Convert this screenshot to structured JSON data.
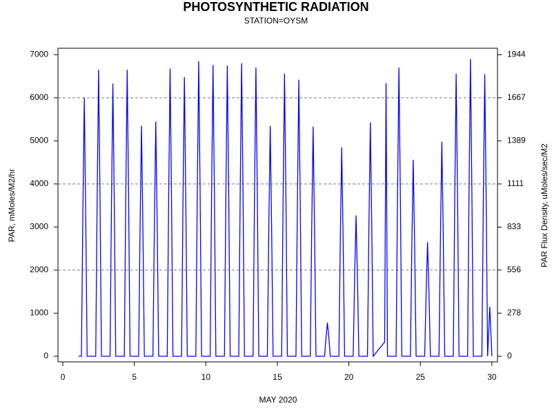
{
  "chart_data": {
    "type": "line",
    "title": "PHOTOSYNTHETIC RADIATION",
    "subtitle": "STATION=OYSM",
    "x_label": "MAY 2020",
    "y_label": "PAR, mMoles/M2/hr",
    "y2_label": "PAR Flux Density, uMoles/sec/M2",
    "xlim": [
      -0.34,
      30.39
    ],
    "xticks": [
      0,
      5,
      10,
      15,
      20,
      25,
      30
    ],
    "ylim": [
      -130,
      7150
    ],
    "yticks": [
      0,
      1000,
      2000,
      3000,
      4000,
      5000,
      6000,
      7000
    ],
    "y2lim": [
      -36.1,
      1986.1
    ],
    "y2ticks": [
      0,
      278,
      556,
      833,
      1111,
      1389,
      1667,
      1944
    ],
    "grid_lines": [
      2000,
      4000,
      6000
    ],
    "series": [
      {
        "color": "#0000ff",
        "x": [
          1.1,
          1.3,
          1.4,
          1.5,
          1.6,
          1.7,
          2.3,
          2.4,
          2.5,
          2.6,
          2.7,
          3.3,
          3.4,
          3.5,
          3.6,
          3.7,
          4.3,
          4.4,
          4.5,
          4.6,
          4.7,
          5.3,
          5.4,
          5.5,
          5.6,
          5.7,
          6.3,
          6.4,
          6.5,
          6.6,
          6.7,
          7.3,
          7.4,
          7.5,
          7.6,
          7.7,
          8.3,
          8.4,
          8.5,
          8.6,
          8.7,
          9.3,
          9.4,
          9.5,
          9.6,
          9.7,
          10.3,
          10.4,
          10.5,
          10.6,
          10.7,
          11.3,
          11.4,
          11.5,
          11.6,
          11.7,
          12.3,
          12.4,
          12.5,
          12.6,
          12.7,
          13.3,
          13.4,
          13.5,
          13.6,
          13.7,
          14.3,
          14.4,
          14.5,
          14.6,
          14.7,
          15.3,
          15.4,
          15.5,
          15.6,
          15.7,
          16.3,
          16.4,
          16.5,
          16.6,
          16.7,
          17.3,
          17.4,
          17.5,
          17.6,
          17.7,
          18.3,
          18.4,
          18.5,
          18.6,
          18.7,
          19.3,
          19.4,
          19.5,
          19.6,
          19.7,
          20.3,
          20.4,
          20.5,
          20.6,
          20.7,
          21.3,
          21.4,
          21.5,
          21.6,
          21.7,
          22.5,
          22.6,
          22.7,
          23.3,
          23.4,
          23.5,
          23.6,
          23.7,
          24.3,
          24.4,
          24.5,
          24.6,
          24.7,
          25.3,
          25.4,
          25.5,
          25.6,
          25.7,
          26.3,
          26.4,
          26.5,
          26.6,
          26.7,
          27.3,
          27.4,
          27.5,
          27.6,
          27.7,
          28.3,
          28.4,
          28.5,
          28.6,
          28.7,
          29.3,
          29.4,
          29.5,
          29.6,
          29.7,
          29.85,
          30.0
        ],
        "values": [
          0,
          0,
          3300,
          6000,
          3300,
          0,
          0,
          3660,
          6650,
          3660,
          0,
          0,
          3480,
          6330,
          3480,
          0,
          0,
          3660,
          6650,
          3660,
          0,
          0,
          2940,
          5350,
          2940,
          0,
          0,
          3000,
          5450,
          3000,
          0,
          0,
          3670,
          6680,
          3670,
          0,
          0,
          3560,
          6480,
          3560,
          0,
          0,
          3770,
          6850,
          3770,
          0,
          0,
          3720,
          6760,
          3720,
          0,
          0,
          3710,
          6750,
          3710,
          0,
          0,
          3740,
          6800,
          3740,
          0,
          0,
          3690,
          6700,
          3690,
          0,
          0,
          2940,
          5350,
          2940,
          0,
          0,
          3610,
          6560,
          3610,
          0,
          0,
          3530,
          6420,
          3530,
          0,
          0,
          2930,
          5330,
          2930,
          0,
          0,
          430,
          780,
          430,
          0,
          0,
          2670,
          4850,
          2670,
          0,
          0,
          1800,
          3270,
          1800,
          0,
          0,
          2990,
          5430,
          2990,
          0,
          330,
          6340,
          0,
          0,
          3690,
          6700,
          3690,
          0,
          0,
          2510,
          4560,
          2510,
          0,
          0,
          1460,
          2650,
          1460,
          0,
          0,
          2740,
          4980,
          2740,
          0,
          0,
          3610,
          6560,
          3610,
          0,
          0,
          3800,
          6900,
          3800,
          0,
          0,
          3600,
          6550,
          3600,
          0,
          1150,
          0
        ]
      }
    ]
  }
}
